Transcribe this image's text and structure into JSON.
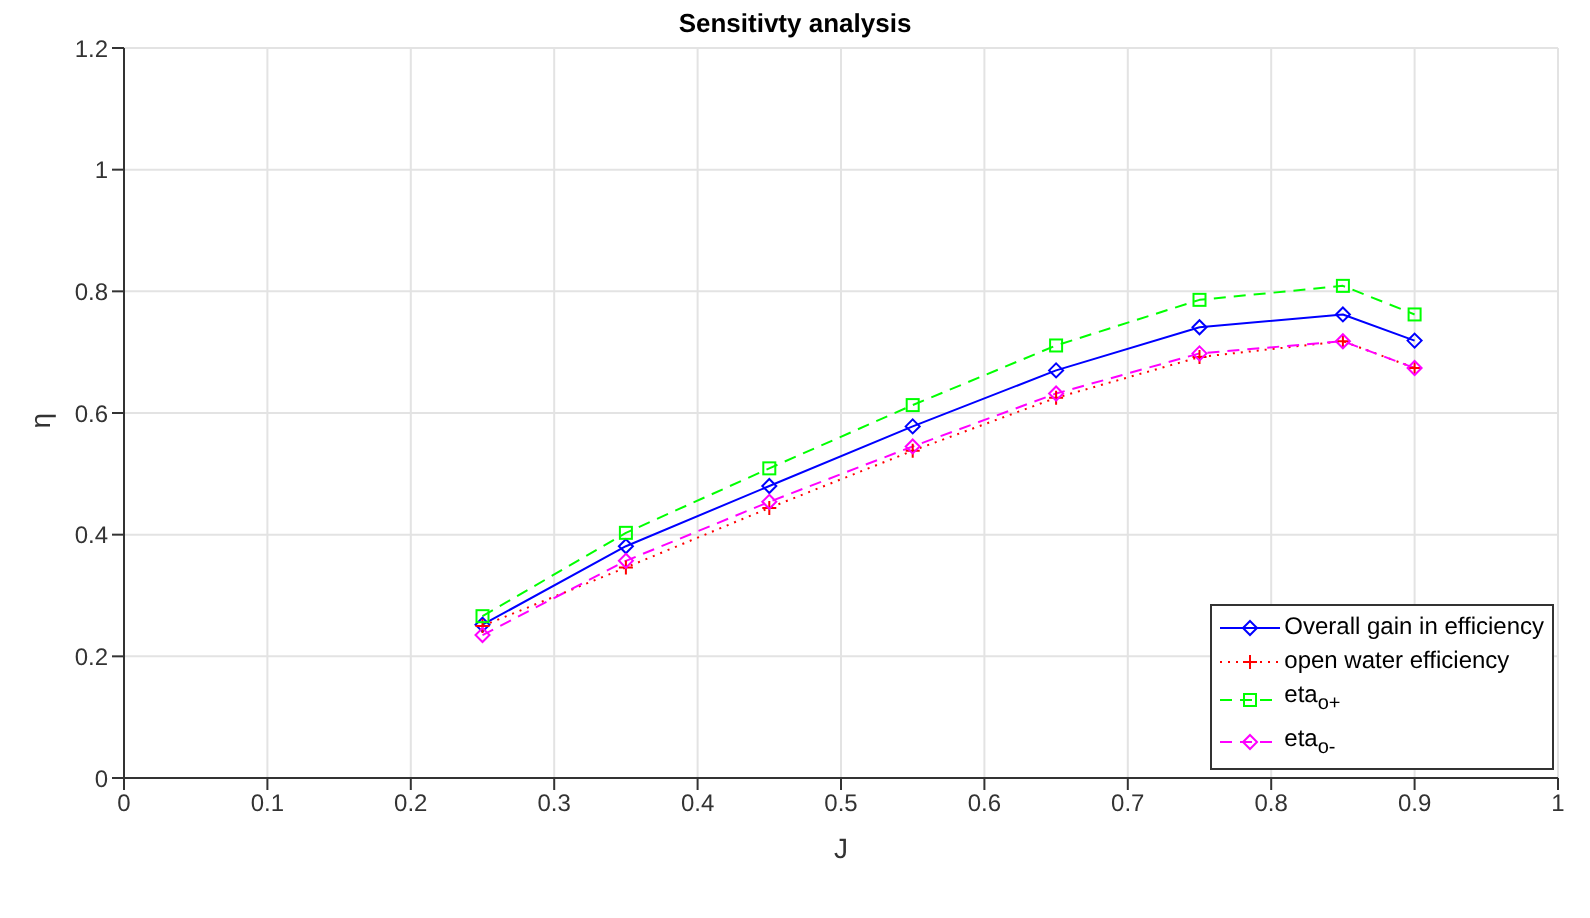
{
  "chart_data": {
    "type": "line",
    "title": "Sensitivty analysis",
    "xlabel": "J",
    "ylabel": "η",
    "x": [
      0.25,
      0.35,
      0.45,
      0.55,
      0.65,
      0.75,
      0.85,
      0.9
    ],
    "series": [
      {
        "name": "Overall gain in efficiency",
        "color": "#0000ff",
        "marker": "diamond",
        "line_style": "solid",
        "values": [
          0.252,
          0.381,
          0.48,
          0.578,
          0.67,
          0.741,
          0.762,
          0.719
        ]
      },
      {
        "name": "open water efficiency",
        "color": "#ff0000",
        "marker": "cross",
        "line_style": "dotted",
        "values": [
          0.25,
          0.346,
          0.444,
          0.538,
          0.625,
          0.692,
          0.718,
          0.674
        ]
      },
      {
        "name": "eta$_{o+}$",
        "color": "#00ff00",
        "marker": "square",
        "line_style": "dashed",
        "values": [
          0.266,
          0.403,
          0.509,
          0.613,
          0.711,
          0.786,
          0.809,
          0.762
        ]
      },
      {
        "name": "eta$_{o-}$",
        "color": "#ff00ff",
        "marker": "diamond",
        "line_style": "dashed",
        "values": [
          0.235,
          0.357,
          0.454,
          0.545,
          0.632,
          0.698,
          0.718,
          0.674
        ]
      }
    ],
    "xlim": [
      0,
      1
    ],
    "xticks": [
      0,
      0.1,
      0.2,
      0.3,
      0.4,
      0.5,
      0.6,
      0.7,
      0.8,
      0.9,
      1
    ],
    "ylim": [
      0,
      1.2
    ],
    "yticks": [
      0,
      0.2,
      0.4,
      0.6,
      0.8,
      1,
      1.2
    ],
    "grid": true,
    "legend": "bottom right"
  }
}
